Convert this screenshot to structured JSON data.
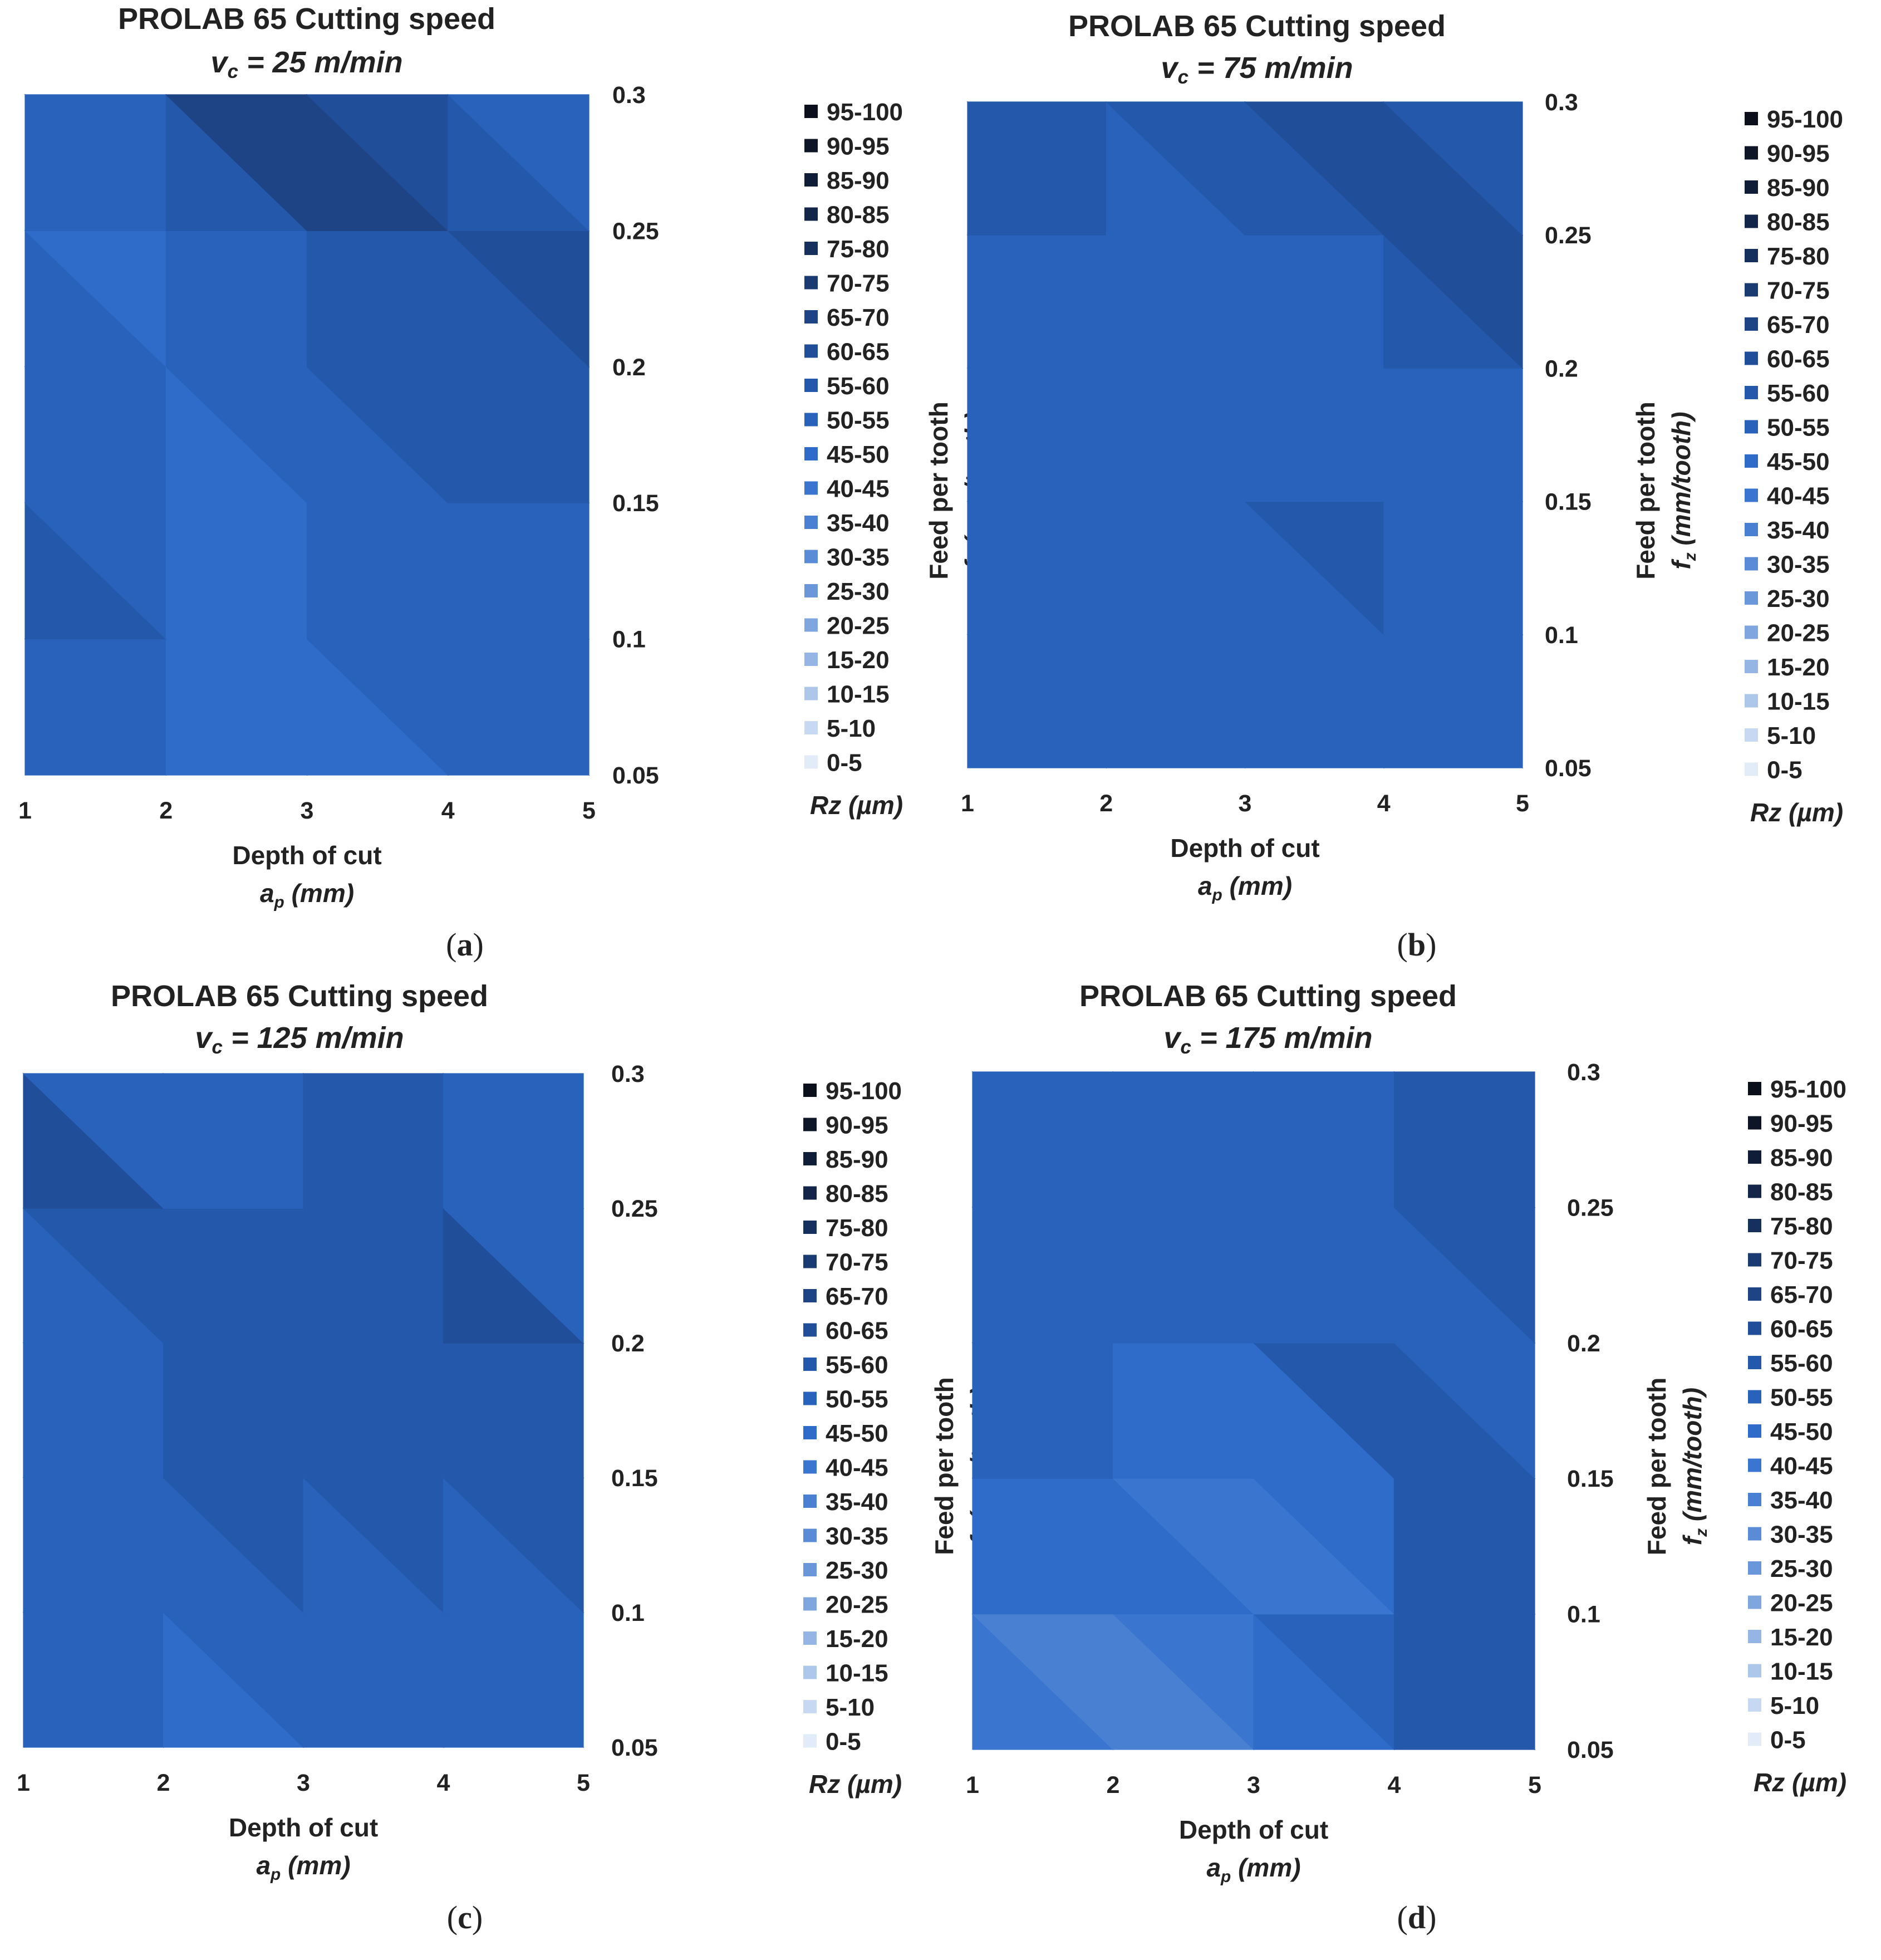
{
  "figure": {
    "legend_bins": [
      "95-100",
      "90-95",
      "85-90",
      "80-85",
      "75-80",
      "70-75",
      "65-70",
      "60-65",
      "55-60",
      "50-55",
      "45-50",
      "40-45",
      "35-40",
      "30-35",
      "25-30",
      "20-25",
      "15-20",
      "10-15",
      "5-10",
      "0-5"
    ],
    "legend_colors": [
      "#0b0f1c",
      "#0d1526",
      "#101d36",
      "#13264a",
      "#16305e",
      "#1a3a72",
      "#1e4486",
      "#214e98",
      "#2458aa",
      "#2862bb",
      "#2f6cc9",
      "#3a76cf",
      "#4a80d2",
      "#5a8bd6",
      "#6a97da",
      "#7fa6df",
      "#95b6e5",
      "#adc7eb",
      "#c7d8f2",
      "#e2ebf8"
    ],
    "legend_unit": "Rz (µm)",
    "x_axis_title": "Depth of cut",
    "x_axis_unit": "ap (mm)",
    "x_unit_main": "a",
    "x_unit_sub": "p",
    "x_unit_rest": " (mm)",
    "y_axis_title": "Feed per tooth",
    "y_axis_unit": "fz (mm/tooth)",
    "y_unit_main": "f",
    "y_unit_sub": "z",
    "y_unit_rest": " (mm/tooth)",
    "title_prefix": "v",
    "title_sub": "c"
  },
  "chart_data": [
    {
      "type": "heatmap",
      "id": "a",
      "panel_label": "a",
      "title": "PROLAB 65 Cutting speed",
      "subtitle": "vc = 25 m/min",
      "subtitle_rest": " = 25 m/min",
      "xlabel": "Depth of cut ap (mm)",
      "ylabel": "Feed per tooth fz (mm/tooth)",
      "x": [
        1,
        2,
        3,
        4,
        5
      ],
      "y": [
        0.05,
        0.1,
        0.15,
        0.2,
        0.25,
        0.3
      ],
      "x_ticks": [
        "1",
        "2",
        "3",
        "4",
        "5"
      ],
      "y_ticks": [
        "0.05",
        "0.1",
        "0.15",
        "0.2",
        "0.25",
        "0.3"
      ],
      "xlim": [
        1,
        5
      ],
      "ylim": [
        0.05,
        0.3
      ],
      "colorbar_label": "Rz (µm)",
      "z": [
        [
          52,
          46,
          45,
          54,
          52
        ],
        [
          62,
          47,
          44,
          54,
          52
        ],
        [
          60,
          46,
          52,
          54,
          55
        ],
        [
          58,
          50,
          58,
          60,
          58
        ],
        [
          56,
          42,
          60,
          58,
          67
        ],
        [
          56,
          66,
          78,
          54,
          42
        ]
      ]
    },
    {
      "type": "heatmap",
      "id": "b",
      "panel_label": "b",
      "title": "PROLAB 65 Cutting speed",
      "subtitle": "vc = 75 m/min",
      "subtitle_rest": " = 75 m/min",
      "xlabel": "Depth of cut ap (mm)",
      "ylabel": "Feed per tooth fz (mm/tooth)",
      "x": [
        1,
        2,
        3,
        4,
        5
      ],
      "y": [
        0.05,
        0.1,
        0.15,
        0.2,
        0.25,
        0.3
      ],
      "x_ticks": [
        "1",
        "2",
        "3",
        "4",
        "5"
      ],
      "y_ticks": [
        "0.05",
        "0.1",
        "0.15",
        "0.2",
        "0.25",
        "0.3"
      ],
      "xlim": [
        1,
        5
      ],
      "ylim": [
        0.05,
        0.3
      ],
      "colorbar_label": "Rz (µm)",
      "z": [
        [
          54,
          54,
          54,
          54,
          54
        ],
        [
          54,
          54,
          54,
          54,
          52
        ],
        [
          52,
          54,
          54,
          58,
          52
        ],
        [
          58,
          48,
          52,
          52,
          56
        ],
        [
          56,
          54,
          48,
          62,
          66
        ],
        [
          58,
          60,
          60,
          62,
          42
        ]
      ]
    },
    {
      "type": "heatmap",
      "id": "c",
      "panel_label": "c",
      "title": "PROLAB 65 Cutting speed",
      "subtitle": "vc = 125 m/min",
      "subtitle_rest": " = 125 m/min",
      "xlabel": "Depth of cut ap (mm)",
      "ylabel": "Feed per tooth fz (mm/tooth)",
      "x": [
        1,
        2,
        3,
        4,
        5
      ],
      "y": [
        0.05,
        0.1,
        0.15,
        0.2,
        0.25,
        0.3
      ],
      "x_ticks": [
        "1",
        "2",
        "3",
        "4",
        "5"
      ],
      "y_ticks": [
        "0.05",
        "0.1",
        "0.15",
        "0.2",
        "0.25",
        "0.3"
      ],
      "xlim": [
        1,
        5
      ],
      "ylim": [
        0.05,
        0.3
      ],
      "colorbar_label": "Rz (µm)",
      "z": [
        [
          54,
          44,
          48,
          54,
          54
        ],
        [
          60,
          56,
          52,
          54,
          52
        ],
        [
          46,
          56,
          58,
          56,
          58
        ],
        [
          52,
          52,
          58,
          58,
          60
        ],
        [
          60,
          60,
          58,
          62,
          40
        ],
        [
          62,
          42,
          58,
          58,
          58
        ]
      ]
    },
    {
      "type": "heatmap",
      "id": "d",
      "panel_label": "d",
      "title": "PROLAB 65 Cutting speed",
      "subtitle": "vc = 175 m/min",
      "subtitle_rest": " = 175 m/min",
      "xlabel": "Depth of cut ap (mm)",
      "ylabel": "Feed per tooth fz (mm/tooth)",
      "x": [
        1,
        2,
        3,
        4,
        5
      ],
      "y": [
        0.05,
        0.1,
        0.15,
        0.2,
        0.25,
        0.3
      ],
      "x_ticks": [
        "1",
        "2",
        "3",
        "4",
        "5"
      ],
      "y_ticks": [
        "0.05",
        "0.1",
        "0.15",
        "0.2",
        "0.25",
        "0.3"
      ],
      "xlim": [
        1,
        5
      ],
      "ylim": [
        0.05,
        0.3
      ],
      "colorbar_label": "Rz (µm)",
      "z": [
        [
          50,
          26,
          44,
          56,
          56
        ],
        [
          52,
          36,
          46,
          56,
          56
        ],
        [
          54,
          56,
          32,
          56,
          56
        ],
        [
          52,
          50,
          56,
          54,
          52
        ],
        [
          58,
          54,
          54,
          54,
          62
        ],
        [
          50,
          52,
          52,
          58,
          58
        ]
      ]
    }
  ]
}
